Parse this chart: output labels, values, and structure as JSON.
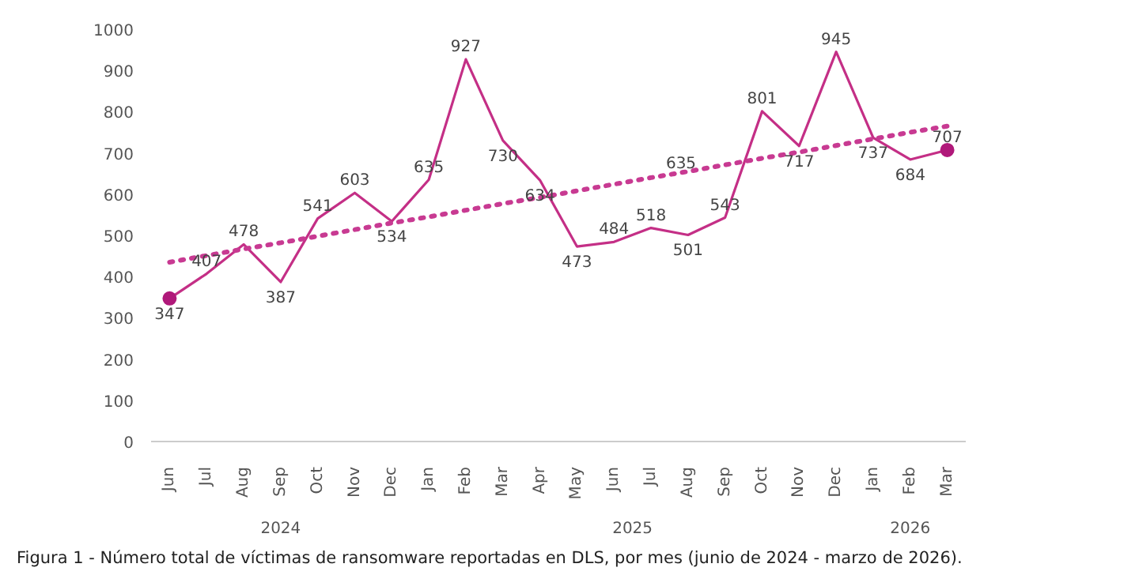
{
  "chart_data": {
    "type": "line",
    "categories": [
      "Jun",
      "Jul",
      "Aug",
      "Sep",
      "Oct",
      "Nov",
      "Dec",
      "Jan",
      "Feb",
      "Mar",
      "Apr",
      "May",
      "Jun",
      "Jul",
      "Aug",
      "Sep",
      "Oct",
      "Nov",
      "Dec",
      "Jan",
      "Feb",
      "Mar"
    ],
    "series": [
      {
        "color": "#c42f86",
        "values": [
          347,
          407,
          478,
          387,
          541,
          603,
          534,
          635,
          927,
          730,
          634,
          473,
          484,
          518,
          501,
          543,
          801,
          717,
          945,
          737,
          684,
          707
        ],
        "data_labels": true,
        "line_style": "solid"
      },
      {
        "type": "line",
        "color": "#c83a92",
        "values": [
          435,
          451,
          467,
          482,
          498,
          514,
          530,
          545,
          561,
          577,
          592,
          608,
          624,
          640,
          655,
          671,
          687,
          702,
          718,
          734,
          750,
          765
        ],
        "line_style": "dotted"
      },
      {
        "type": "scatter",
        "color": "#b0197a",
        "values": [
          347,
          null,
          null,
          null,
          null,
          null,
          null,
          null,
          null,
          null,
          null,
          null,
          null,
          null,
          null,
          null,
          null,
          null,
          null,
          null,
          null,
          707
        ],
        "marker": "circle"
      }
    ],
    "ylim": [
      0,
      1000
    ],
    "yticks": [
      0,
      100,
      200,
      300,
      400,
      500,
      600,
      700,
      800,
      900,
      1000
    ],
    "grid": false,
    "annotations": [
      "2024",
      "2025",
      "2026",
      "635",
      "Figura 1 - Número total de víctimas de ransomware reportadas en DLS, por mes (junio de 2024 - marzo de 2026)."
    ]
  }
}
